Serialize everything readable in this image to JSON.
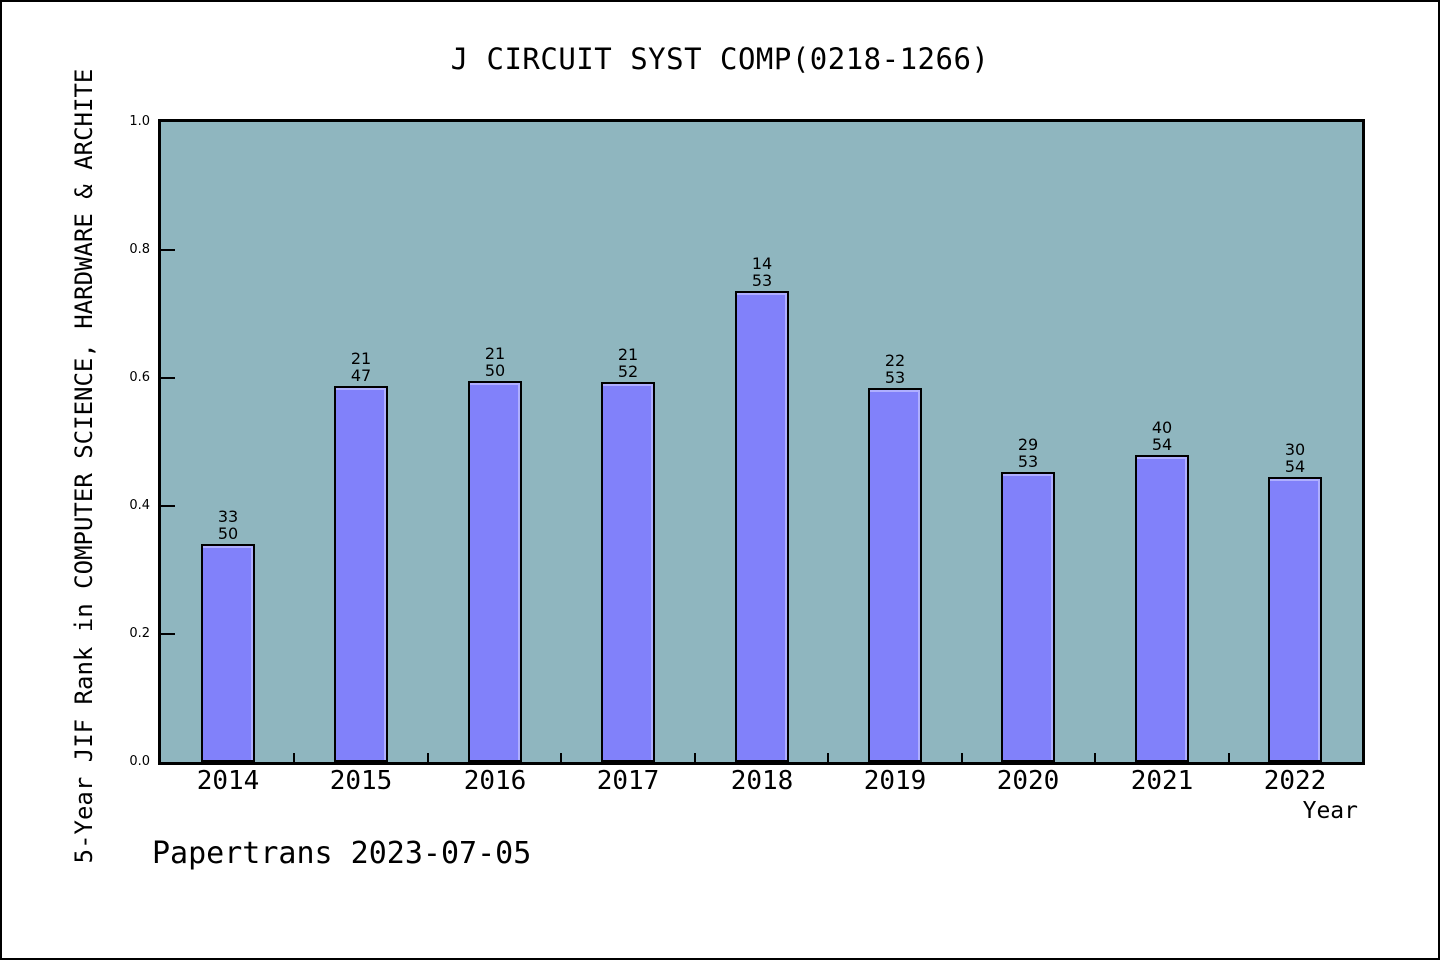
{
  "page": {
    "footer": "Papertrans 2023-07-05"
  },
  "chart_data": {
    "type": "bar",
    "title": "J CIRCUIT SYST COMP(0218-1266)",
    "xlabel": "Year",
    "ylabel": "5-Year JIF Rank in COMPUTER SCIENCE, HARDWARE & ARCHITE",
    "ylim": [
      0.0,
      1.0
    ],
    "yticks": [
      "0.0",
      "0.2",
      "0.4",
      "0.6",
      "0.8",
      "1.0"
    ],
    "grid": false,
    "legend": "none",
    "categories": [
      "2014",
      "2015",
      "2016",
      "2017",
      "2018",
      "2019",
      "2020",
      "2021",
      "2022"
    ],
    "points": [
      {
        "year": "2014",
        "rank": "33",
        "total": "50",
        "bar_height": 0.34
      },
      {
        "year": "2015",
        "rank": "21",
        "total": "47",
        "bar_height": 0.588
      },
      {
        "year": "2016",
        "rank": "21",
        "total": "50",
        "bar_height": 0.595
      },
      {
        "year": "2017",
        "rank": "21",
        "total": "52",
        "bar_height": 0.593
      },
      {
        "year": "2018",
        "rank": "14",
        "total": "53",
        "bar_height": 0.736
      },
      {
        "year": "2019",
        "rank": "22",
        "total": "53",
        "bar_height": 0.585
      },
      {
        "year": "2020",
        "rank": "29",
        "total": "53",
        "bar_height": 0.453
      },
      {
        "year": "2021",
        "rank": "40",
        "total": "54",
        "bar_height": 0.48
      },
      {
        "year": "2022",
        "rank": "30",
        "total": "54",
        "bar_height": 0.446
      }
    ],
    "colors": {
      "plot_bg": "#8FB6BF",
      "bar_fill": "#8181FA",
      "bar_highlight": "#AFAFFF",
      "bar_border": "#000000",
      "text": "#000000"
    }
  }
}
